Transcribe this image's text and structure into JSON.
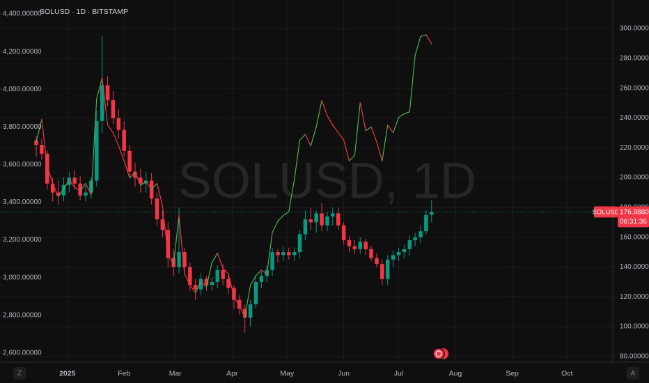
{
  "chart_data": {
    "type": "candlestick",
    "title": "SOLUSD · 1D · BITSTAMP",
    "watermark": "SOLUSD, 1D",
    "grid": true,
    "xlim": [
      -6.6,
      105
    ],
    "xticks": [
      {
        "value": 5.67,
        "label": "2025"
      },
      {
        "value": 16,
        "label": "Feb"
      },
      {
        "value": 25.33,
        "label": "Mar"
      },
      {
        "value": 35.67,
        "label": "Apr"
      },
      {
        "value": 45.67,
        "label": "May"
      },
      {
        "value": 56,
        "label": "Jun"
      },
      {
        "value": 66,
        "label": "Jul"
      },
      {
        "value": 76.33,
        "label": "Aug"
      },
      {
        "value": 86.67,
        "label": "Sep"
      },
      {
        "value": 96.67,
        "label": "Oct"
      }
    ],
    "ylim": [
      2551.5,
      4474
    ],
    "yticks": [
      {
        "value": 4400,
        "label": "4,400.00000"
      },
      {
        "value": 4200,
        "label": "4,200.00000"
      },
      {
        "value": 4000,
        "label": "4,000.00000"
      },
      {
        "value": 3800,
        "label": "3,800.00000"
      },
      {
        "value": 3600,
        "label": "3,600.00000"
      },
      {
        "value": 3400,
        "label": "3,400.00000"
      },
      {
        "value": 3200,
        "label": "3,200.00000"
      },
      {
        "value": 3000,
        "label": "3,000.00000"
      },
      {
        "value": 2800,
        "label": "2,800.00000"
      },
      {
        "value": 2600,
        "label": "2,600.00000"
      }
    ],
    "y2lim": [
      76.2,
      319.2
    ],
    "y2ticks": [
      {
        "value": 300,
        "label": "300.00000"
      },
      {
        "value": 280,
        "label": "280.00000"
      },
      {
        "value": 260,
        "label": "260.00000"
      },
      {
        "value": 240,
        "label": "240.00000"
      },
      {
        "value": 220,
        "label": "220.00000"
      },
      {
        "value": 200,
        "label": "200.00000"
      },
      {
        "value": 180,
        "label": "180.00000"
      },
      {
        "value": 160,
        "label": "160.00000"
      },
      {
        "value": 140,
        "label": "140.00000"
      },
      {
        "value": 120,
        "label": "120.00000"
      },
      {
        "value": 100,
        "label": "100.00000"
      },
      {
        "value": 80,
        "label": "80.00000"
      }
    ],
    "series": [
      {
        "type": "candlestick",
        "axis": "y2",
        "up_color": "#089981",
        "down_color": "#f23645",
        "open": [
          225,
          222,
          216,
          196,
          190,
          188,
          195,
          200,
          196,
          188,
          190,
          198,
          238,
          262,
          252,
          240,
          232,
          218,
          204,
          200,
          196,
          198,
          186,
          172,
          165,
          146,
          140,
          150,
          140,
          128,
          125,
          132,
          128,
          130,
          138,
          132,
          126,
          118,
          112,
          106,
          115,
          130,
          134,
          138,
          150,
          148,
          150,
          148,
          150,
          162,
          172,
          170,
          176,
          168,
          174,
          176,
          168,
          158,
          154,
          152,
          157,
          152,
          146,
          142,
          132,
          145,
          148,
          150,
          152,
          158,
          160,
          164,
          175
        ],
        "high": [
          228,
          226,
          218,
          200,
          198,
          200,
          204,
          205,
          201,
          195,
          200,
          245,
          295,
          268,
          258,
          246,
          238,
          222,
          210,
          206,
          204,
          203,
          190,
          178,
          170,
          152,
          180,
          153,
          143,
          132,
          136,
          134,
          133,
          141,
          142,
          134,
          128,
          121,
          115,
          118,
          133,
          137,
          141,
          153,
          152,
          154,
          153,
          153,
          165,
          178,
          180,
          178,
          183,
          177,
          180,
          180,
          170,
          161,
          158,
          160,
          159,
          154,
          149,
          145,
          148,
          151,
          153,
          155,
          161,
          163,
          168,
          178,
          185
        ],
        "low": [
          214,
          212,
          192,
          184,
          182,
          184,
          190,
          192,
          185,
          184,
          186,
          194,
          230,
          248,
          236,
          226,
          214,
          200,
          194,
          190,
          190,
          182,
          168,
          160,
          140,
          134,
          136,
          136,
          124,
          118,
          121,
          124,
          124,
          126,
          128,
          122,
          112,
          108,
          96,
          100,
          112,
          126,
          130,
          134,
          143,
          144,
          145,
          144,
          146,
          158,
          165,
          163,
          164,
          164,
          168,
          165,
          155,
          150,
          149,
          149,
          148,
          144,
          140,
          128,
          128,
          140,
          144,
          146,
          148,
          154,
          156,
          162,
          170
        ],
        "close": [
          222,
          216,
          196,
          190,
          188,
          195,
          200,
          196,
          188,
          190,
          198,
          238,
          262,
          252,
          240,
          232,
          218,
          204,
          200,
          196,
          198,
          186,
          172,
          165,
          146,
          140,
          150,
          140,
          128,
          125,
          132,
          128,
          130,
          138,
          132,
          126,
          118,
          112,
          106,
          115,
          130,
          134,
          138,
          150,
          148,
          150,
          148,
          150,
          162,
          172,
          170,
          176,
          168,
          174,
          176,
          168,
          158,
          154,
          152,
          157,
          152,
          146,
          142,
          132,
          145,
          148,
          150,
          152,
          158,
          160,
          164,
          175,
          176.988
        ]
      },
      {
        "type": "line",
        "axis": "y",
        "up_color": "#4caf50",
        "down_color": "#f23645",
        "values": [
          3720,
          3840,
          3590,
          3500,
          3430,
          3470,
          3520,
          3480,
          3460,
          3500,
          3440,
          3950,
          4060,
          3810,
          3770,
          3700,
          3620,
          3530,
          3560,
          3490,
          3510,
          3470,
          3500,
          3380,
          3120,
          3070,
          3330,
          3020,
          2960,
          2920,
          2980,
          2950,
          3080,
          3130,
          3050,
          3020,
          2900,
          2850,
          2790,
          2960,
          3010,
          3040,
          3020,
          3240,
          3300,
          3330,
          3350,
          3520,
          3730,
          3760,
          3700,
          3800,
          3940,
          3860,
          3810,
          3770,
          3730,
          3620,
          3650,
          3930,
          3780,
          3800,
          3720,
          3620,
          3810,
          3770,
          3850,
          3870,
          3880,
          4180,
          4280,
          4290,
          4240
        ]
      }
    ],
    "last_price": {
      "symbol": "SOLUSD",
      "label": "176.98800",
      "countdown": "06:31:36"
    },
    "axis_buttons": [
      "Z",
      "A"
    ]
  }
}
